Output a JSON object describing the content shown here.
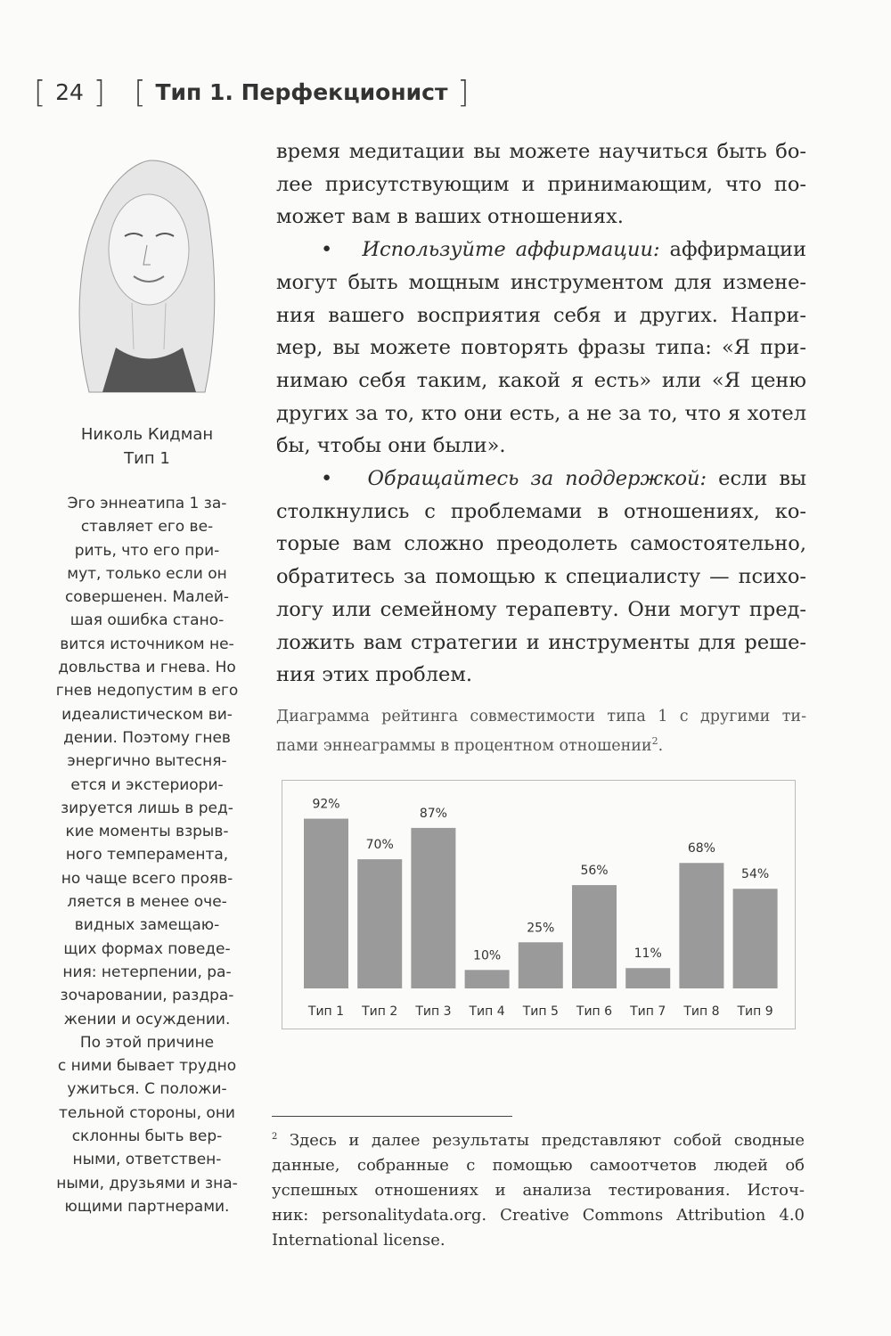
{
  "header": {
    "page_number": "24",
    "chapter_title": "Тип 1. Перфекционист"
  },
  "portrait": {
    "name": "Николь Кидман",
    "type": "Тип 1"
  },
  "sidebar": {
    "lines": [
      "Эго эннеатипа 1 за-",
      "ставляет его ве-",
      "рить, что его при-",
      "мут, только если он",
      "совершенен. Малей-",
      "шая ошибка стано-",
      "вится источником не-",
      "довльства и гнева. Но",
      "гнев недопустим в его",
      "идеалистическом ви-",
      "дении. Поэтому гнев",
      "энергично вытесня-",
      "ется и экстериори-",
      "зируется лишь в ред-",
      "кие моменты взрыв-",
      "ного темперамента,",
      "но чаще всего прояв-",
      "ляется в менее оче-",
      "видных замещаю-",
      "щих формах поведе-",
      "ния: нетерпении, ра-",
      "зочаровании, раздра-",
      "жении и осуждении.",
      "По этой причине",
      "с ними бывает трудно",
      "ужиться. С положи-",
      "тельной стороны, они",
      "склонны быть вер-",
      "ными, ответствен-",
      "ными, друзьями и зна-",
      "ющими партнерами."
    ]
  },
  "main": {
    "paragraphs": [
      {
        "lead": "",
        "lines": [
          "время медитации вы можете научиться быть бо-",
          "лее присутствующим и принимающим, что по-",
          "может вам в ваших отношениях."
        ]
      },
      {
        "lead": "Используйте аффирмации:",
        "lines": [
          " аффирмации",
          "могут быть мощным инструментом для измене-",
          "ния вашего восприятия себя и других. Напри-",
          "мер, вы можете повторять фразы типа: «Я при-",
          "нимаю себя таким, какой я есть» или «Я ценю",
          "других за то, кто они есть, а не за то, что я хотел",
          "бы, чтобы они были»."
        ]
      },
      {
        "lead": "Обращайтесь за поддержкой:",
        "lines": [
          " если вы",
          "столкнулись с проблемами в отношениях, ко-",
          "торые вам сложно преодолеть самостоятельно,",
          "обратитесь за помощью к специалисту — психо-",
          "логу или семейному терапевту. Они могут пред-",
          "ложить вам стратегии и инструменты для реше-",
          "ния этих проблем."
        ]
      }
    ]
  },
  "chart_caption": {
    "lines": [
      "Диаграмма рейтинга совместимости типа 1 с другими ти-",
      "пами эннеаграммы в процентном отношении"
    ],
    "footnote_ref": "2"
  },
  "chart_data": {
    "type": "bar",
    "categories": [
      "Тип 1",
      "Тип 2",
      "Тип 3",
      "Тип 4",
      "Тип 5",
      "Тип 6",
      "Тип 7",
      "Тип 8",
      "Тип 9"
    ],
    "values": [
      92,
      70,
      87,
      10,
      25,
      56,
      11,
      68,
      54
    ],
    "labels": [
      "92%",
      "70%",
      "87%",
      "10%",
      "25%",
      "56%",
      "11%",
      "68%",
      "54%"
    ],
    "title": "",
    "xlabel": "",
    "ylabel": "",
    "ylim": [
      0,
      100
    ],
    "grid": false,
    "bar_color": "#9a9a9a"
  },
  "footnote": {
    "mark": "2",
    "lines": [
      " Здесь и далее результаты представляют собой сводные",
      "данные, собранные с помощью самоотчетов людей об",
      "успешных отношениях и анализа тестирования. Источ-",
      "ник: personalitydata.org. Creative Commons Attribution 4.0",
      "International license."
    ]
  }
}
